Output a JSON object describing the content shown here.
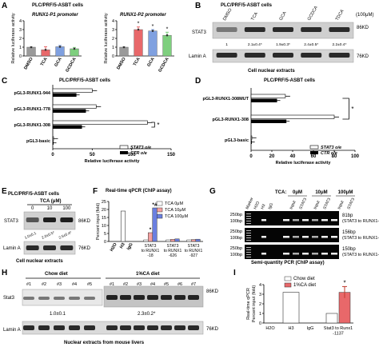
{
  "panels": {
    "A": {
      "letter": "A",
      "cell_title": "PLC/PRF/5-ASBT cells",
      "left": {
        "promoter": "RUNX1-P1 promoter",
        "ylabel": "Relative luciferase activity",
        "yticks": [
          "0",
          "1",
          "2",
          "3",
          "4"
        ],
        "categories": [
          "DMSO",
          "TCA",
          "GCA",
          "GCDCA"
        ],
        "values": [
          1.0,
          0.7,
          1.05,
          0.82
        ],
        "errors": [
          0.02,
          0.35,
          0.15,
          0.15
        ],
        "colors": [
          "#9a9a9a",
          "#e8686a",
          "#7fa0e0",
          "#7ecf7e"
        ]
      },
      "right": {
        "promoter": "RUNX1-P2 promoter",
        "ylabel": "Relative luciferase activity",
        "yticks": [
          "0",
          "1",
          "2",
          "3",
          "4"
        ],
        "categories": [
          "DMSO",
          "TCA",
          "GCA",
          "GCDCA"
        ],
        "values": [
          1.0,
          3.0,
          2.85,
          2.35
        ],
        "errors": [
          0.02,
          0.3,
          0.15,
          0.35
        ],
        "colors": [
          "#9a9a9a",
          "#e8686a",
          "#7fa0e0",
          "#7ecf7e"
        ],
        "marks": [
          "",
          "*",
          "*",
          "*"
        ]
      }
    },
    "B": {
      "letter": "B",
      "cell_title": "PLC/PRF/5-ASBT cells",
      "lanes": [
        "DMSO",
        "TCA",
        "GCA",
        "GCDCA",
        "TDCA"
      ],
      "conc": "(100μM)",
      "stat3_label": "STAT3",
      "size_stat3": "86KD",
      "ratios": [
        "1",
        "2.1±0.4*",
        "1.9±0.3*",
        "2.4±0.5*",
        "2.2±0.4*"
      ],
      "lamin_label": "Lamin A",
      "size_lamin": "76KD",
      "caption": "Cell nuclear extracts"
    },
    "C": {
      "letter": "C",
      "cell_title": "PLC/PRF/5-ASBT cells",
      "constructs": [
        "pGL3-RUNX1-944",
        "pGL3-RUNX1-778",
        "pGL3-RUNX1-308",
        "pGL3-basic"
      ],
      "stat3_values": [
        50,
        55,
        120,
        0.5
      ],
      "ctr_values": [
        30,
        42,
        37,
        0.5
      ],
      "xticks": [
        "0",
        "50",
        "100",
        "150"
      ],
      "xlabel": "Relative luciferase activity",
      "legend": [
        "STAT3 o/e",
        "CTR o/e"
      ],
      "mark": "*"
    },
    "D": {
      "letter": "D",
      "cell_title": "PLC/PRF/5-ASBT cells",
      "constructs": [
        "pGL3-RUNX1-308MUT",
        "pGL3-RUNX1-308",
        "pGL3-basic"
      ],
      "stat3_values": [
        33,
        80,
        0.5
      ],
      "ctr_values": [
        25,
        34,
        0.5
      ],
      "xticks": [
        "0",
        "20",
        "40",
        "60",
        "80",
        "100"
      ],
      "xlabel": "Relative luciferase activity",
      "legend": [
        "STAT3 o/e",
        "CTR o/e"
      ],
      "mark": "*"
    },
    "E": {
      "letter": "E",
      "cell_title": "PLC/PRF/5-ASBT cells",
      "treatment": "TCA (μM)",
      "lanes": [
        "0",
        "10",
        "100"
      ],
      "stat3_label": "STAT3",
      "size_stat3": "86KD",
      "ratios": [
        "1.0±0.1",
        "2.0±0.5*",
        "2.5±0.4*"
      ],
      "lamin_label": "Lamin A",
      "size_lamin": "76KD",
      "caption": "Cell nuclear extracts"
    },
    "F": {
      "letter": "F",
      "title": "Real-time qPCR (ChIP assay)",
      "ylabel": "Percent input (fold)",
      "yticks": [
        "0",
        "5",
        "10",
        "15",
        "20",
        "25"
      ],
      "legend": [
        "TCA 0μM",
        "TCA 10μM",
        "TCA 100μM"
      ],
      "colors": [
        "#ffffff",
        "#f4a0a0",
        "#6a7fe0"
      ],
      "categories": [
        "H2O",
        "H3",
        "IgG",
        "STAT3 to RUNX1 -18",
        "STAT3 to RUNX1 -626",
        "STAT3 to RUNX1 -927"
      ],
      "cat_labels": [
        "H2O",
        "H3",
        "IgG",
        "STAT3\nto RUNX1\n-18",
        "STAT3\nto RUNX1\n-626",
        "STAT3\nto RUNX1\n-927"
      ],
      "h3_value": 19,
      "stat3_18": [
        1.0,
        5.5,
        21.0
      ],
      "stat3_626": [
        1.0,
        1.3,
        1.6
      ],
      "stat3_927": [
        1.0,
        1.2,
        1.4
      ],
      "marks": [
        "*",
        "*#"
      ]
    },
    "G": {
      "letter": "G",
      "marker": "Marker",
      "lanes_top": [
        "H2O",
        "H3",
        "IgG"
      ],
      "tca_label": "TCA:",
      "groups": [
        "0μM",
        "10μM",
        "100μM"
      ],
      "sub": [
        "Input",
        "STAT3"
      ],
      "rows": [
        {
          "bp_top": "250bp",
          "bp_bot": "100bp",
          "size": "81bp",
          "target": "(STAT3 to RUNX1-18)"
        },
        {
          "bp_top": "250bp",
          "bp_bot": "100bp",
          "size": "156bp",
          "target": "(STAT3 to RUNX1-626)"
        },
        {
          "bp_top": "250bp",
          "bp_bot": "100bp",
          "size": "150bp",
          "target": "(STAT3 to RUNX1-927)"
        }
      ],
      "caption": "Semi-quantity PCR (ChIP assay)"
    },
    "H": {
      "letter": "H",
      "chow": "Chow diet",
      "tca": "1%CA diet",
      "lanes": [
        "#1",
        "#2",
        "#3",
        "#4",
        "#5",
        "#1",
        "#2",
        "#3",
        "#4",
        "#5",
        "#6",
        "#7"
      ],
      "stat3_label": "Stat3",
      "size_stat3": "86KD",
      "ratio_chow": "1.0±0.1",
      "ratio_ca": "2.3±0.2*",
      "lamin_label": "Lamin A",
      "size_lamin": "76KD",
      "caption": "Nuclear extracts from mouse livers"
    },
    "I": {
      "letter": "I",
      "ylabel": "Real-time qPCR Percent input (fold)",
      "yticks": [
        "0",
        "1",
        "2",
        "3",
        "4"
      ],
      "legend": [
        "Chow diet",
        "1%CA diet"
      ],
      "colors": [
        "#ffffff",
        "#e8686a"
      ],
      "categories": [
        "H2O",
        "H3",
        "IgG",
        "Stat3 to Runx1 -1137"
      ],
      "cat_labels": [
        "H2O",
        "H3",
        "IgG",
        "Stat3 to Runx1\n-1137"
      ],
      "h3_value": 3.2,
      "chow_value": 1.0,
      "ca_value": 3.2,
      "ca_error": 0.6,
      "mark": "*"
    }
  }
}
